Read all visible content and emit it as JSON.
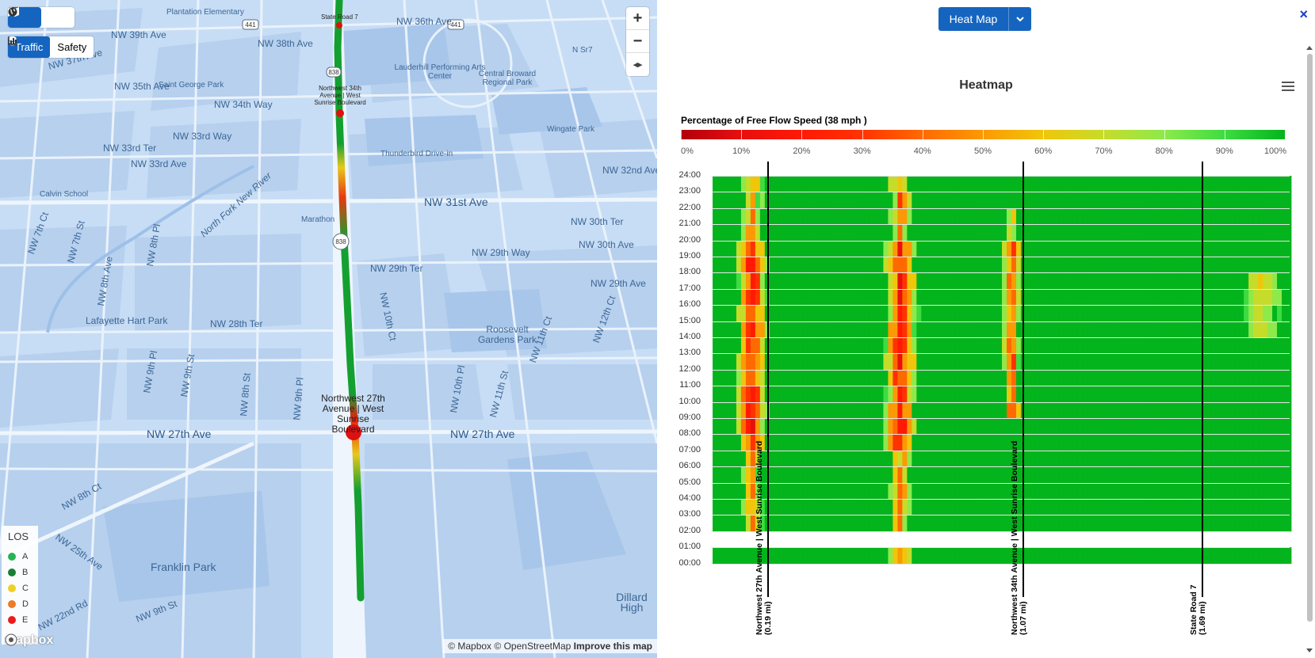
{
  "map": {
    "mode_buttons": [
      {
        "icon": "map-icon",
        "active": true
      },
      {
        "icon": "globe-icon",
        "active": false
      }
    ],
    "layer_tabs": [
      {
        "label": "Traffic",
        "icon": "database-icon",
        "active": true
      },
      {
        "label": "Safety",
        "icon": "bar-chart-icon",
        "active": false
      }
    ],
    "zoom": {
      "in": "+",
      "out": "−",
      "compass": "◂▸"
    },
    "street_labels": [
      "NW 39th Ave",
      "NW 38th Ave",
      "NW 37th Ave",
      "NW 36th Ave",
      "NW 35th Ave",
      "NW 34th Way",
      "NW 33rd Way",
      "NW 33rd Ter",
      "NW 33rd Ave",
      "NW 32nd Ave",
      "NW 31st Ave",
      "NW 30th Ter",
      "NW 30th Ave",
      "NW 29th Way",
      "NW 29th Ter",
      "NW 29th Ave",
      "NW 28th Ter",
      "NW 27th Ave",
      "NW 27th Ave",
      "NW 8th Ct",
      "NW 25th Ave",
      "NW 22nd Rd",
      "NW 9th St",
      "NW 10th Ct",
      "NW 11th Ct",
      "NW 12th Ct",
      "NW 10th Pl",
      "NW 11th St",
      "NW 8th St",
      "NW 9th Pl",
      "NW 8th Pl",
      "NW 7th Ct",
      "NW 8th Ave",
      "NW 7th St",
      "NW 9th St",
      "NW 9th Pl",
      "N Sr7",
      "North Fork New River"
    ],
    "poi_labels": [
      "Plantation Elementary",
      "Lauderhill Performing Arts Center",
      "Central Broward Regional Park",
      "Saint George Park",
      "Wingate Park",
      "Thunderbird Drive-in",
      "Calvin School",
      "Marathon",
      "Lafayette Hart Park",
      "Roosevelt Gardens Park",
      "Franklin Park",
      "Dillard High"
    ],
    "shields": [
      "441",
      "441",
      "838",
      "838"
    ],
    "nodes": [
      {
        "label": "State Road 7",
        "los": "E"
      },
      {
        "label": "Northwest 34th Avenue | West Sunrise Boulevard",
        "los": "E"
      },
      {
        "label": "Northwest 27th Avenue | West Sunrise Boulevard",
        "los": "E"
      }
    ],
    "legend": {
      "title": "LOS",
      "items": [
        {
          "label": "A",
          "color": "#22b14c"
        },
        {
          "label": "B",
          "color": "#137a2d"
        },
        {
          "label": "C",
          "color": "#f2d21a"
        },
        {
          "label": "D",
          "color": "#f0781e"
        },
        {
          "label": "E",
          "color": "#ee1111"
        }
      ]
    },
    "attribution": {
      "mapbox": "© Mapbox",
      "osm": "© OpenStreetMap",
      "improve": "Improve this map"
    },
    "logo_text": "mapbox"
  },
  "panel": {
    "view_select": "Heat Map",
    "close_label": "×",
    "menu_icon": "hamburger-icon"
  },
  "chart_data": {
    "type": "heatmap",
    "title": "Heatmap",
    "colorbar_title": "Percentage of Free Flow Speed (38 mph )",
    "colorbar_ticks": [
      "0%",
      "10%",
      "20%",
      "30%",
      "40%",
      "50%",
      "60%",
      "70%",
      "80%",
      "90%",
      "100%"
    ],
    "colorscale": [
      "#b1000d",
      "#e80f0f",
      "#ff1a06",
      "#ff3300",
      "#ff6a00",
      "#fb9a04",
      "#f0c60b",
      "#c6dc2a",
      "#8ee94b",
      "#3edc41",
      "#03b41d"
    ],
    "y_ticks": [
      "24:00",
      "23:00",
      "22:00",
      "21:00",
      "20:00",
      "19:00",
      "18:00",
      "17:00",
      "16:00",
      "15:00",
      "14:00",
      "13:00",
      "12:00",
      "11:00",
      "10:00",
      "09:00",
      "08:00",
      "07:00",
      "06:00",
      "05:00",
      "04:00",
      "03:00",
      "02:00",
      "01:00",
      "00:00"
    ],
    "segments": [
      {
        "label": "Northwest 27th Avenue | West Sunrise Boulevard",
        "distance": "(0.19 mi)"
      },
      {
        "label": "Northwest 34th Avenue | West Sunrise Boulevard",
        "distance": "(1.07 mi)"
      },
      {
        "label": "State Road 7",
        "distance": "(1.69 mi)"
      }
    ],
    "segment_positions_mi": [
      0.19,
      1.07,
      1.69
    ],
    "x_range_mi": [
      0,
      2.0
    ],
    "missing_hours": [
      "01:00"
    ],
    "congestion_bands": [
      {
        "x_from_mi": 0.07,
        "x_to_mi": 0.2,
        "hours": "02:00-23:00",
        "min_pct": 5
      },
      {
        "x_from_mi": 0.58,
        "x_to_mi": 0.72,
        "hours": "00:00-23:00",
        "min_pct": 5
      },
      {
        "x_from_mi": 1.0,
        "x_to_mi": 1.07,
        "hours": "09:00-21:00",
        "min_pct": 10
      },
      {
        "x_from_mi": 1.8,
        "x_to_mi": 2.0,
        "hours": "14:00-17:00",
        "min_pct": 60
      }
    ]
  }
}
